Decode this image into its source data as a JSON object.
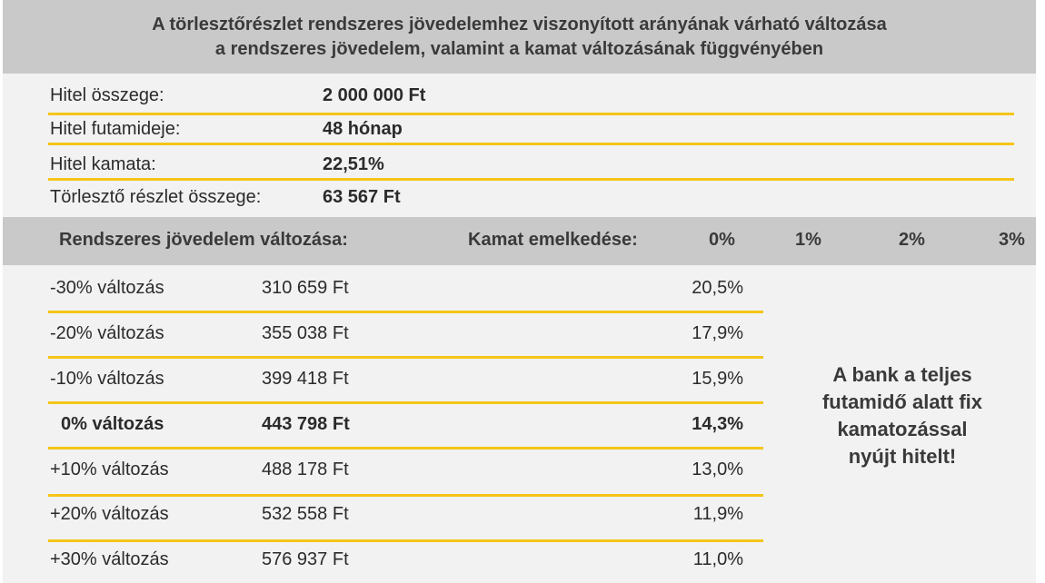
{
  "title": {
    "line1": "A törlesztőrészlet rendszeres jövedelemhez viszonyított arányának várható változása",
    "line2": "a rendszeres jövedelem, valamint a kamat változásának függvényében"
  },
  "loan_info": [
    {
      "label": "Hitel összege:",
      "value": "2 000 000 Ft"
    },
    {
      "label": "Hitel futamideje:",
      "value": "48 hónap"
    },
    {
      "label": "Hitel kamata:",
      "value": "22,51%"
    },
    {
      "label": "Törlesztő részlet összege:",
      "value": "63 567 Ft"
    }
  ],
  "table_header": {
    "income_change": "Rendszeres jövedelem változása:",
    "rate_increase": "Kamat emelkedése:",
    "rate_columns": [
      "0%",
      "1%",
      "2%",
      "3%"
    ]
  },
  "rows": [
    {
      "label": "-30% változás",
      "amount": "310 659 Ft",
      "pct": "20,5%",
      "bold": false
    },
    {
      "label": "-20% változás",
      "amount": "355 038 Ft",
      "pct": "17,9%",
      "bold": false
    },
    {
      "label": "-10% változás",
      "amount": "399 418 Ft",
      "pct": "15,9%",
      "bold": false
    },
    {
      "label": "0% változás",
      "amount": "443 798 Ft",
      "pct": "14,3%",
      "bold": true
    },
    {
      "label": "+10% változás",
      "amount": "488 178 Ft",
      "pct": "13,0%",
      "bold": false
    },
    {
      "label": "+20% változás",
      "amount": "532 558 Ft",
      "pct": "11,9%",
      "bold": false
    },
    {
      "label": "+30% változás",
      "amount": "576 937 Ft",
      "pct": "11,0%",
      "bold": false
    }
  ],
  "note": {
    "lines": [
      "A bank a teljes",
      "futamidő alatt fix",
      "kamatozással",
      "nyújt hitelt!"
    ]
  },
  "colors": {
    "accent_line": "#f5c518",
    "header_bg": "#c8c9c8",
    "panel_bg": "#f1f2f1"
  }
}
